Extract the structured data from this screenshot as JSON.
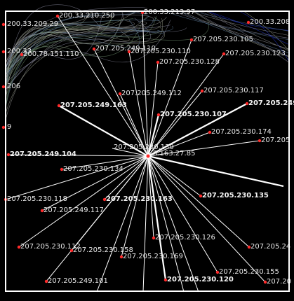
{
  "center": {
    "ip": "207.205.230.139",
    "alt_ip": "8.163.27.85"
  },
  "nodes": [
    {
      "ip": "200.33.210.250"
    },
    {
      "ip": "200.33.213.97"
    },
    {
      "ip": "200.33.209.29"
    },
    {
      "ip": "200.33.208"
    },
    {
      "ip": "200.33"
    },
    {
      "ip": "200.78.151.110"
    },
    {
      "ip": "206"
    },
    {
      "ip": "9"
    },
    {
      "ip": "207.205.230.105"
    },
    {
      "ip": "207.205.249.110"
    },
    {
      "ip": "207.205.230.110"
    },
    {
      "ip": "207.205.230.123"
    },
    {
      "ip": "207.205.230.128"
    },
    {
      "ip": "207.205.230.117"
    },
    {
      "ip": "207.205.249.112"
    },
    {
      "ip": "207.205.249.163",
      "bold": true
    },
    {
      "ip": "207.205.230.107",
      "bold": true
    },
    {
      "ip": "207.205.249",
      "bold": true
    },
    {
      "ip": "207.205.230.174"
    },
    {
      "ip": "207.205"
    },
    {
      "ip": "207.205.230.134"
    },
    {
      "ip": "207.205.249.104",
      "bold": true
    },
    {
      "ip": "207.205.230.118"
    },
    {
      "ip": "207.205.249.117"
    },
    {
      "ip": "207.205.230.163",
      "bold": true
    },
    {
      "ip": "207.205.230.135",
      "bold": true
    },
    {
      "ip": "207.205.230.112"
    },
    {
      "ip": "207.205.230.158"
    },
    {
      "ip": "207.205.230.126"
    },
    {
      "ip": "207.205.230.169"
    },
    {
      "ip": "207.205.24"
    },
    {
      "ip": "207.205.230.155"
    },
    {
      "ip": "207.205.249.101"
    },
    {
      "ip": "207.205.230.120",
      "bold": true
    },
    {
      "ip": "207.20"
    }
  ],
  "colors": {
    "background": "#000000",
    "edge": "#ffffff",
    "node": "#ff2a2a",
    "label": "#e8e8e8",
    "frame": "#ffffff",
    "tangle_tones": [
      "#6f8f6f",
      "#8a8aa0",
      "#a0a0a0",
      "#5f7f9f",
      "#9aa08a"
    ],
    "accent_strand": "#2233cc"
  }
}
